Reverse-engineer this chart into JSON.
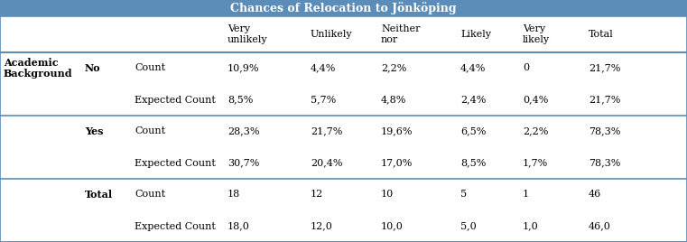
{
  "title": "Chances of Relocation to Jönköping",
  "title_bg": "#5b8db8",
  "title_text_color": "#ffffff",
  "col_labels": [
    "Very\nunlikely",
    "Unlikely",
    "Neither\nnor",
    "Likely",
    "Very\nlikely",
    "Total"
  ],
  "rows": [
    {
      "group": "Academic\nBackground",
      "subgroup": "No",
      "type": "Count",
      "vals": [
        "10,9%",
        "4,4%",
        "2,2%",
        "4,4%",
        "0",
        "21,7%"
      ]
    },
    {
      "group": "",
      "subgroup": "",
      "type": "Expected Count",
      "vals": [
        "8,5%",
        "5,7%",
        "4,8%",
        "2,4%",
        "0,4%",
        "21,7%"
      ]
    },
    {
      "group": "",
      "subgroup": "Yes",
      "type": "Count",
      "vals": [
        "28,3%",
        "21,7%",
        "19,6%",
        "6,5%",
        "2,2%",
        "78,3%"
      ]
    },
    {
      "group": "",
      "subgroup": "",
      "type": "Expected Count",
      "vals": [
        "30,7%",
        "20,4%",
        "17,0%",
        "8,5%",
        "1,7%",
        "78,3%"
      ]
    },
    {
      "group": "",
      "subgroup": "Total",
      "type": "Count",
      "vals": [
        "18",
        "12",
        "10",
        "5",
        "1",
        "46"
      ]
    },
    {
      "group": "",
      "subgroup": "",
      "type": "Expected Count",
      "vals": [
        "18,0",
        "12,0",
        "10,0",
        "5,0",
        "1,0",
        "46,0"
      ]
    }
  ],
  "border_color": "#5b8db8",
  "font_size": 8.0,
  "title_font_size": 9.0
}
